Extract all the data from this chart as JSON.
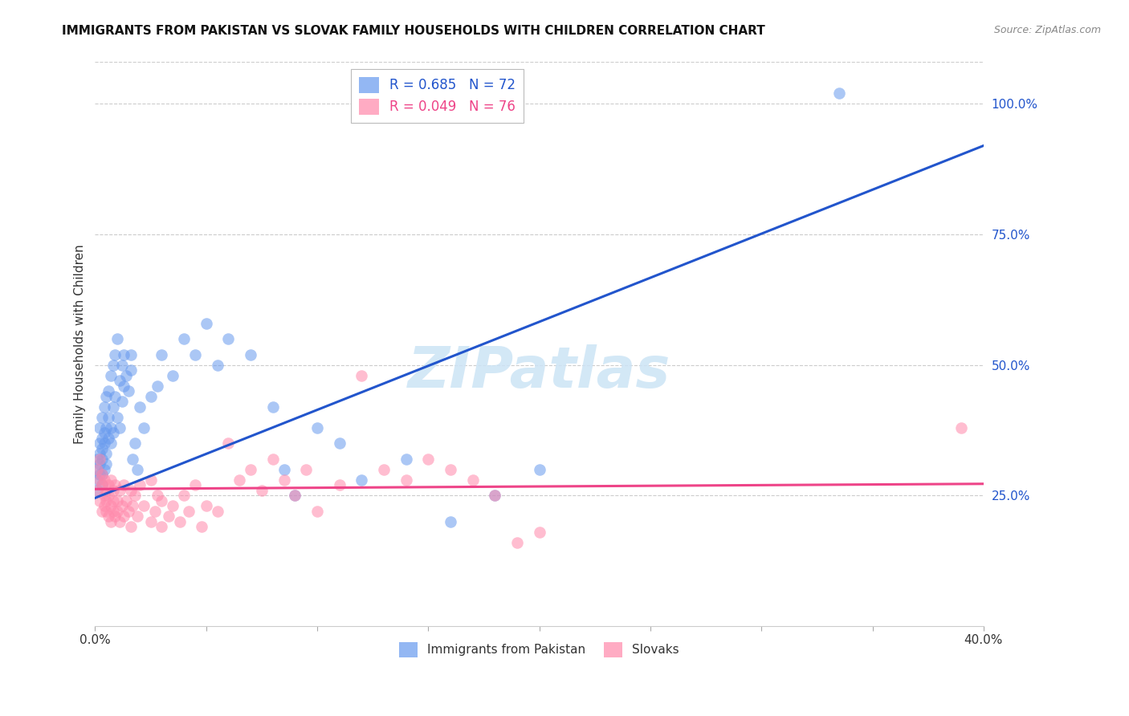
{
  "title": "IMMIGRANTS FROM PAKISTAN VS SLOVAK FAMILY HOUSEHOLDS WITH CHILDREN CORRELATION CHART",
  "source": "Source: ZipAtlas.com",
  "ylabel": "Family Households with Children",
  "xlim": [
    0.0,
    0.4
  ],
  "ylim": [
    0.0,
    1.08
  ],
  "xtick_positions": [
    0.0,
    0.05,
    0.1,
    0.15,
    0.2,
    0.25,
    0.3,
    0.35,
    0.4
  ],
  "xtick_labels": [
    "0.0%",
    "",
    "",
    "",
    "",
    "",
    "",
    "",
    "40.0%"
  ],
  "ytick_positions_right": [
    0.25,
    0.5,
    0.75,
    1.0
  ],
  "ytick_labels_right": [
    "25.0%",
    "50.0%",
    "75.0%",
    "100.0%"
  ],
  "legend_blue_R": "R = 0.685",
  "legend_blue_N": "N = 72",
  "legend_pink_R": "R = 0.049",
  "legend_pink_N": "N = 76",
  "color_blue": "#6699ee",
  "color_pink": "#ff88aa",
  "color_line_blue": "#2255cc",
  "color_line_pink": "#ee4488",
  "color_grid": "#cccccc",
  "watermark_color": "#cce4f5",
  "pakistan_line_x": [
    0.0,
    0.4
  ],
  "pakistan_line_y": [
    0.245,
    0.92
  ],
  "slovak_line_x": [
    0.0,
    0.4
  ],
  "slovak_line_y": [
    0.262,
    0.272
  ],
  "pakistan_scatter": [
    [
      0.001,
      0.3
    ],
    [
      0.001,
      0.32
    ],
    [
      0.001,
      0.28
    ],
    [
      0.002,
      0.33
    ],
    [
      0.002,
      0.35
    ],
    [
      0.002,
      0.31
    ],
    [
      0.002,
      0.38
    ],
    [
      0.002,
      0.29
    ],
    [
      0.003,
      0.34
    ],
    [
      0.003,
      0.36
    ],
    [
      0.003,
      0.32
    ],
    [
      0.003,
      0.4
    ],
    [
      0.003,
      0.27
    ],
    [
      0.004,
      0.37
    ],
    [
      0.004,
      0.35
    ],
    [
      0.004,
      0.42
    ],
    [
      0.004,
      0.3
    ],
    [
      0.005,
      0.38
    ],
    [
      0.005,
      0.44
    ],
    [
      0.005,
      0.33
    ],
    [
      0.005,
      0.31
    ],
    [
      0.006,
      0.4
    ],
    [
      0.006,
      0.36
    ],
    [
      0.006,
      0.45
    ],
    [
      0.007,
      0.48
    ],
    [
      0.007,
      0.38
    ],
    [
      0.007,
      0.35
    ],
    [
      0.008,
      0.5
    ],
    [
      0.008,
      0.42
    ],
    [
      0.008,
      0.37
    ],
    [
      0.009,
      0.52
    ],
    [
      0.009,
      0.44
    ],
    [
      0.01,
      0.55
    ],
    [
      0.01,
      0.4
    ],
    [
      0.011,
      0.47
    ],
    [
      0.011,
      0.38
    ],
    [
      0.012,
      0.5
    ],
    [
      0.012,
      0.43
    ],
    [
      0.013,
      0.52
    ],
    [
      0.013,
      0.46
    ],
    [
      0.014,
      0.48
    ],
    [
      0.015,
      0.45
    ],
    [
      0.016,
      0.52
    ],
    [
      0.016,
      0.49
    ],
    [
      0.017,
      0.32
    ],
    [
      0.018,
      0.35
    ],
    [
      0.019,
      0.3
    ],
    [
      0.02,
      0.42
    ],
    [
      0.022,
      0.38
    ],
    [
      0.025,
      0.44
    ],
    [
      0.028,
      0.46
    ],
    [
      0.03,
      0.52
    ],
    [
      0.035,
      0.48
    ],
    [
      0.04,
      0.55
    ],
    [
      0.045,
      0.52
    ],
    [
      0.05,
      0.58
    ],
    [
      0.055,
      0.5
    ],
    [
      0.06,
      0.55
    ],
    [
      0.07,
      0.52
    ],
    [
      0.08,
      0.42
    ],
    [
      0.085,
      0.3
    ],
    [
      0.09,
      0.25
    ],
    [
      0.1,
      0.38
    ],
    [
      0.11,
      0.35
    ],
    [
      0.12,
      0.28
    ],
    [
      0.14,
      0.32
    ],
    [
      0.16,
      0.2
    ],
    [
      0.18,
      0.25
    ],
    [
      0.2,
      0.3
    ],
    [
      0.335,
      1.02
    ],
    [
      0.001,
      0.26
    ],
    [
      0.003,
      0.29
    ]
  ],
  "slovak_scatter": [
    [
      0.001,
      0.3
    ],
    [
      0.001,
      0.26
    ],
    [
      0.002,
      0.28
    ],
    [
      0.002,
      0.24
    ],
    [
      0.002,
      0.32
    ],
    [
      0.003,
      0.27
    ],
    [
      0.003,
      0.22
    ],
    [
      0.003,
      0.29
    ],
    [
      0.004,
      0.25
    ],
    [
      0.004,
      0.23
    ],
    [
      0.004,
      0.28
    ],
    [
      0.005,
      0.26
    ],
    [
      0.005,
      0.22
    ],
    [
      0.005,
      0.24
    ],
    [
      0.006,
      0.27
    ],
    [
      0.006,
      0.21
    ],
    [
      0.006,
      0.25
    ],
    [
      0.007,
      0.28
    ],
    [
      0.007,
      0.23
    ],
    [
      0.007,
      0.2
    ],
    [
      0.008,
      0.26
    ],
    [
      0.008,
      0.22
    ],
    [
      0.008,
      0.24
    ],
    [
      0.009,
      0.27
    ],
    [
      0.009,
      0.21
    ],
    [
      0.01,
      0.24
    ],
    [
      0.01,
      0.22
    ],
    [
      0.011,
      0.26
    ],
    [
      0.011,
      0.2
    ],
    [
      0.012,
      0.23
    ],
    [
      0.013,
      0.27
    ],
    [
      0.013,
      0.21
    ],
    [
      0.014,
      0.24
    ],
    [
      0.015,
      0.22
    ],
    [
      0.016,
      0.26
    ],
    [
      0.016,
      0.19
    ],
    [
      0.017,
      0.23
    ],
    [
      0.018,
      0.25
    ],
    [
      0.019,
      0.21
    ],
    [
      0.02,
      0.27
    ],
    [
      0.022,
      0.23
    ],
    [
      0.025,
      0.2
    ],
    [
      0.025,
      0.28
    ],
    [
      0.027,
      0.22
    ],
    [
      0.028,
      0.25
    ],
    [
      0.03,
      0.19
    ],
    [
      0.03,
      0.24
    ],
    [
      0.033,
      0.21
    ],
    [
      0.035,
      0.23
    ],
    [
      0.038,
      0.2
    ],
    [
      0.04,
      0.25
    ],
    [
      0.042,
      0.22
    ],
    [
      0.045,
      0.27
    ],
    [
      0.048,
      0.19
    ],
    [
      0.05,
      0.23
    ],
    [
      0.055,
      0.22
    ],
    [
      0.06,
      0.35
    ],
    [
      0.065,
      0.28
    ],
    [
      0.07,
      0.3
    ],
    [
      0.075,
      0.26
    ],
    [
      0.08,
      0.32
    ],
    [
      0.085,
      0.28
    ],
    [
      0.09,
      0.25
    ],
    [
      0.095,
      0.3
    ],
    [
      0.1,
      0.22
    ],
    [
      0.11,
      0.27
    ],
    [
      0.12,
      0.48
    ],
    [
      0.13,
      0.3
    ],
    [
      0.14,
      0.28
    ],
    [
      0.15,
      0.32
    ],
    [
      0.16,
      0.3
    ],
    [
      0.17,
      0.28
    ],
    [
      0.18,
      0.25
    ],
    [
      0.19,
      0.16
    ],
    [
      0.2,
      0.18
    ],
    [
      0.39,
      0.38
    ]
  ]
}
